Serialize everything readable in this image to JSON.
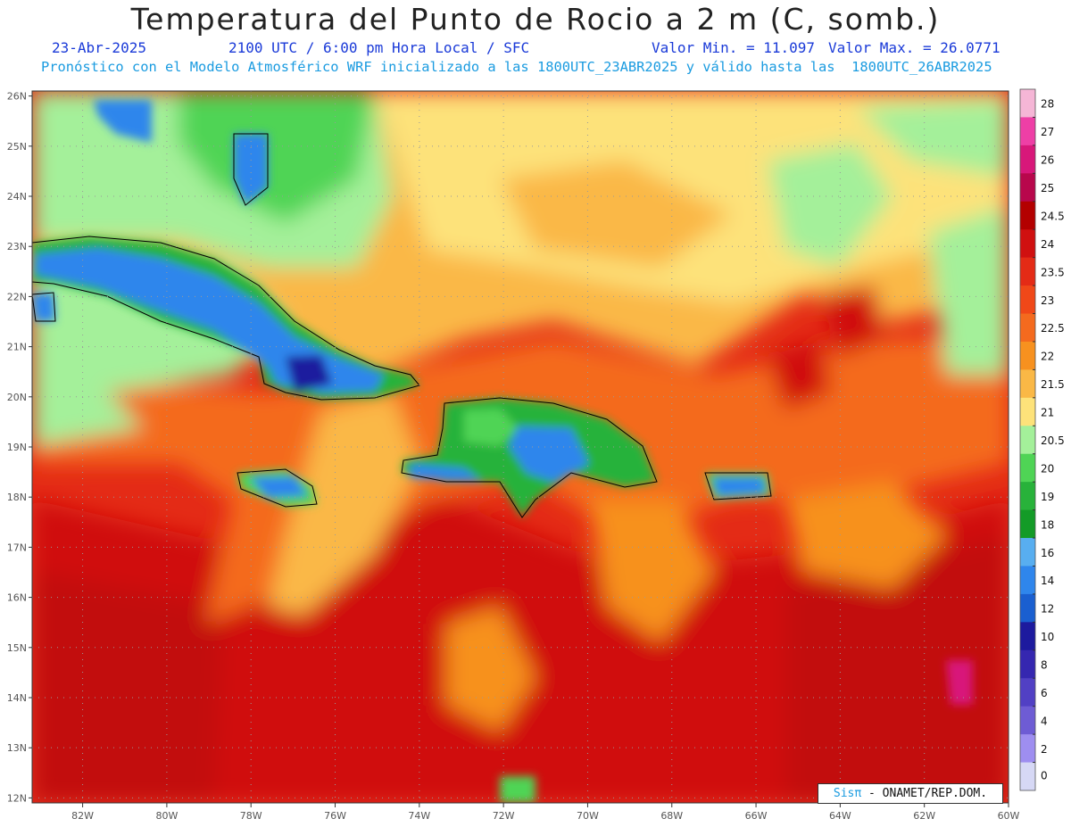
{
  "title": "Temperatura del Punto de Rocio a 2 m (C, somb.)",
  "date": "23-Abr-2025",
  "time_info": "2100 UTC / 6:00 pm Hora Local / SFC",
  "min_value": "Valor Min. = 11.097",
  "max_value": "Valor Max. = 26.0771",
  "forecast_info": "Pronóstico con el Modelo Atmosférico WRF inicializado a las 1800UTC_23ABR2025 y válido hasta las  1800UTC_26ABR2025",
  "credit": {
    "brand": "Sisπ",
    "text": " - ONAMET/REP.DOM."
  },
  "map": {
    "lon_range": [
      -83.2,
      -60
    ],
    "lat_range": [
      11.9,
      26.1
    ],
    "lon_ticks": [
      "82W",
      "80W",
      "78W",
      "76W",
      "74W",
      "72W",
      "70W",
      "68W",
      "66W",
      "64W",
      "62W",
      "60W"
    ],
    "lon_values": [
      -82,
      -80,
      -78,
      -76,
      -74,
      -72,
      -70,
      -68,
      -66,
      -64,
      -62,
      -60
    ],
    "lat_ticks": [
      "26N",
      "25N",
      "24N",
      "23N",
      "22N",
      "21N",
      "20N",
      "19N",
      "18N",
      "17N",
      "16N",
      "15N",
      "14N",
      "13N",
      "12N"
    ],
    "lat_values": [
      26,
      25,
      24,
      23,
      22,
      21,
      20,
      19,
      18,
      17,
      16,
      15,
      14,
      13,
      12
    ]
  },
  "colorbar": {
    "labels": [
      "28",
      "27",
      "26",
      "25",
      "24.5",
      "24",
      "23.5",
      "23",
      "22.5",
      "22",
      "21.5",
      "21",
      "20.5",
      "20",
      "19",
      "18",
      "16",
      "14",
      "12",
      "10",
      "8",
      "6",
      "4",
      "2",
      "0"
    ],
    "colors": [
      "#f5b6d6",
      "#ee3fa6",
      "#d8177a",
      "#b8074c",
      "#b30000",
      "#d01010",
      "#e42b16",
      "#f04818",
      "#f46a1e",
      "#f7911f",
      "#fab846",
      "#fde27a",
      "#a4f09a",
      "#4fd455",
      "#28b23a",
      "#139b27",
      "#58aef0",
      "#2f86ec",
      "#1a5fd0",
      "#1d1a9e",
      "#3527b0",
      "#5140c4",
      "#6e5cd4",
      "#9e8ef0",
      "#d6d8f5"
    ]
  }
}
